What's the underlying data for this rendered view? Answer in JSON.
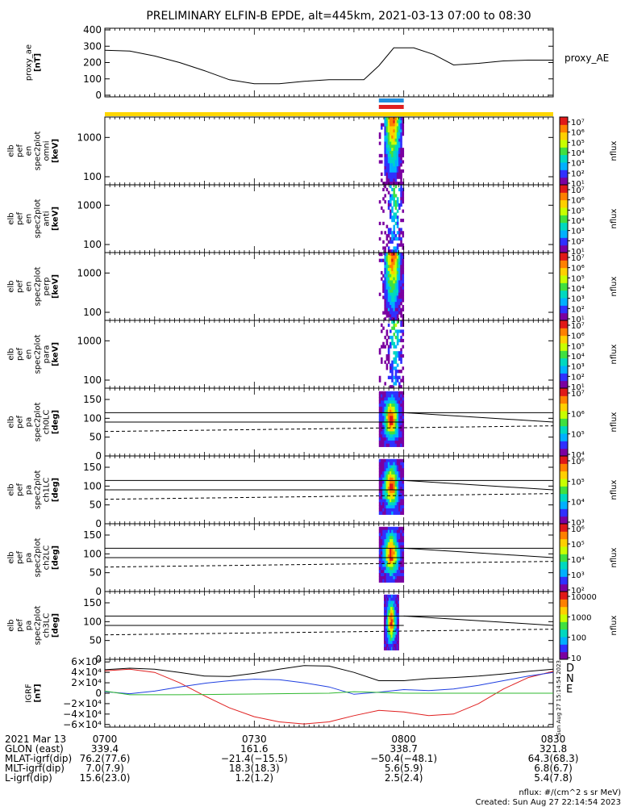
{
  "title": "PRELIMINARY ELFIN-B EPDE, alt=445km, 2021-03-13 07:00 to 08:30",
  "colors": {
    "axis": "#000000",
    "sci_zone": "#ffd700",
    "ibo": "#1f8fe0",
    "obo": "#e02020",
    "igrf_d": "#e02020",
    "igrf_n": "#1f3fe0",
    "igrf_e": "#2fb82f",
    "igrf_total": "#000000"
  },
  "colorscale": [
    "#7b00a0",
    "#3030ff",
    "#00b0ff",
    "#00d8c0",
    "#40e040",
    "#c8ff00",
    "#ffd000",
    "#ff8000",
    "#e01818"
  ],
  "chart_data": [
    {
      "panel": "proxy_ae",
      "type": "line",
      "ylabel": [
        "proxy_ae",
        "[nT]"
      ],
      "ylim": [
        0,
        400
      ],
      "yticks": [
        "400",
        "300",
        "200",
        "100",
        "0"
      ],
      "ytick_values": [
        400,
        300,
        200,
        100,
        0
      ],
      "legend": "proxy_AE",
      "x": [
        0,
        5,
        10,
        15,
        20,
        25,
        30,
        35,
        40,
        45,
        48,
        52,
        55,
        58,
        62,
        66,
        70,
        75,
        80,
        85,
        90
      ],
      "y": [
        275,
        270,
        240,
        200,
        150,
        95,
        70,
        70,
        85,
        95,
        95,
        95,
        180,
        290,
        290,
        250,
        185,
        195,
        210,
        215,
        215
      ]
    },
    {
      "panel": "science_zone_bars",
      "type": "bar",
      "sci_zone_span": [
        0,
        90
      ],
      "ibo_span": [
        55,
        60
      ],
      "obo_span": [
        55,
        60
      ]
    },
    {
      "panel": "en_spec_omni",
      "type": "heatmap",
      "ylabel": [
        "elb",
        "pef",
        "en",
        "spec2plot",
        "omni",
        "[keV]"
      ],
      "yticks": [
        "1000",
        "100"
      ],
      "ytick_values": [
        1000,
        100
      ],
      "colorbar_ticks": [
        "10⁷",
        "10⁶",
        "10⁵",
        "10⁴",
        "10³",
        "10²",
        "10¹"
      ],
      "colorbar_label": "nflux",
      "time_span": [
        55,
        60
      ]
    },
    {
      "panel": "en_spec_anti",
      "type": "heatmap",
      "ylabel": [
        "elb",
        "pef",
        "en",
        "spec2plot",
        "anti",
        "[keV]"
      ],
      "yticks": [
        "1000",
        "100"
      ],
      "ytick_values": [
        1000,
        100
      ],
      "colorbar_ticks": [
        "10⁷",
        "10⁶",
        "10⁵",
        "10⁴",
        "10³",
        "10²",
        "10¹"
      ],
      "colorbar_label": "nflux",
      "time_span": [
        55,
        60
      ]
    },
    {
      "panel": "en_spec_perp",
      "type": "heatmap",
      "ylabel": [
        "elb",
        "pef",
        "en",
        "spec2plot",
        "perp",
        "[keV]"
      ],
      "yticks": [
        "1000",
        "100"
      ],
      "ytick_values": [
        1000,
        100
      ],
      "colorbar_ticks": [
        "10⁷",
        "10⁶",
        "10⁵",
        "10⁴",
        "10³",
        "10²",
        "10¹"
      ],
      "colorbar_label": "nflux",
      "time_span": [
        55,
        60
      ]
    },
    {
      "panel": "en_spec_para",
      "type": "heatmap",
      "ylabel": [
        "elb",
        "pef",
        "en",
        "spec2plot",
        "para",
        "[keV]"
      ],
      "yticks": [
        "1000",
        "100"
      ],
      "ytick_values": [
        1000,
        100
      ],
      "colorbar_ticks": [
        "10⁷",
        "10⁶",
        "10⁵",
        "10⁴",
        "10³",
        "10²",
        "10¹"
      ],
      "colorbar_label": "nflux",
      "time_span": [
        55,
        60
      ]
    },
    {
      "panel": "pa_spec_ch0LC",
      "type": "heatmap",
      "ylabel": [
        "elb",
        "pef",
        "pa",
        "spec2plot",
        "ch0LC",
        "[deg]"
      ],
      "yticks": [
        "150",
        "100",
        "50",
        "0"
      ],
      "ytick_values": [
        150,
        100,
        50,
        0
      ],
      "ylim": [
        0,
        180
      ],
      "colorbar_ticks": [
        "10⁷",
        "10⁶",
        "10⁵",
        "10⁴"
      ],
      "colorbar_label": "nflux",
      "time_span": [
        55,
        60
      ]
    },
    {
      "panel": "pa_spec_ch1LC",
      "type": "heatmap",
      "ylabel": [
        "elb",
        "pef",
        "pa",
        "spec2plot",
        "ch1LC",
        "[deg]"
      ],
      "yticks": [
        "150",
        "100",
        "50",
        "0"
      ],
      "ytick_values": [
        150,
        100,
        50,
        0
      ],
      "ylim": [
        0,
        180
      ],
      "colorbar_ticks": [
        "10⁶",
        "10⁵",
        "10⁴",
        "10³"
      ],
      "colorbar_label": "nflux",
      "time_span": [
        55,
        60
      ]
    },
    {
      "panel": "pa_spec_ch2LC",
      "type": "heatmap",
      "ylabel": [
        "elb",
        "pef",
        "pa",
        "spec2plot",
        "ch2LC",
        "[deg]"
      ],
      "yticks": [
        "150",
        "100",
        "50",
        "0"
      ],
      "ytick_values": [
        150,
        100,
        50,
        0
      ],
      "ylim": [
        0,
        180
      ],
      "colorbar_ticks": [
        "10⁶",
        "10⁵",
        "10⁴",
        "10³",
        "10²"
      ],
      "colorbar_label": "nflux",
      "time_span": [
        55,
        60
      ]
    },
    {
      "panel": "pa_spec_ch3LC",
      "type": "heatmap",
      "ylabel": [
        "elb",
        "pef",
        "pa",
        "spec2plot",
        "ch3LC",
        "[deg]"
      ],
      "yticks": [
        "150",
        "100",
        "50",
        "0"
      ],
      "ytick_values": [
        150,
        100,
        50,
        0
      ],
      "ylim": [
        0,
        180
      ],
      "colorbar_ticks": [
        "10000",
        "1000",
        "100",
        "10"
      ],
      "colorbar_label": "nflux",
      "time_span": [
        56,
        59
      ]
    },
    {
      "panel": "igrf",
      "type": "line",
      "ylabel": [
        "IGRF",
        "[nT]"
      ],
      "yticks": [
        "6×10⁴",
        "4×10⁴",
        "2×10⁴",
        "0",
        "−2×10⁴",
        "−4×10⁴",
        "−6×10⁴"
      ],
      "ytick_values": [
        60000,
        40000,
        20000,
        0,
        -20000,
        -40000,
        -60000
      ],
      "ylim": [
        -65000,
        65000
      ],
      "legend": [
        "D",
        "N",
        "E"
      ],
      "x": [
        0,
        5,
        10,
        15,
        20,
        25,
        30,
        35,
        40,
        45,
        50,
        55,
        60,
        65,
        70,
        75,
        80,
        85,
        90
      ],
      "series": [
        {
          "name": "D",
          "values": [
            43000,
            46000,
            40000,
            20000,
            -5000,
            -28000,
            -45000,
            -55000,
            -59000,
            -55000,
            -43000,
            -33000,
            -36000,
            -43000,
            -40000,
            -20000,
            8000,
            30000,
            42000
          ]
        },
        {
          "name": "N",
          "values": [
            3000,
            -1000,
            4000,
            12000,
            19000,
            24000,
            27000,
            26000,
            20000,
            12000,
            -2000,
            2000,
            7000,
            5000,
            8000,
            15000,
            24000,
            33000,
            40000
          ]
        },
        {
          "name": "E",
          "values": [
            4000,
            -3000,
            -3000,
            -3000,
            -2500,
            -2000,
            -1500,
            -1000,
            -500,
            0,
            3000,
            1500,
            0,
            0,
            0,
            0,
            0,
            0,
            0
          ]
        },
        {
          "name": "",
          "values": [
            45000,
            48000,
            46000,
            40000,
            33000,
            32000,
            38000,
            46000,
            53000,
            52000,
            40000,
            24000,
            24000,
            28000,
            30000,
            33000,
            37000,
            42000,
            46000
          ]
        }
      ]
    }
  ],
  "xaxis": {
    "row_labels": [
      "2021 Mar 13",
      "GLON (east)",
      "MLAT-igrf(dip)",
      "MLT-igrf(dip)",
      "L-igrf(dip)"
    ],
    "ticks": [
      {
        "min": 0,
        "values": [
          "0700",
          "339.4",
          "76.2(77.6)",
          "7.0(7.9)",
          "15.6(23.0)"
        ]
      },
      {
        "min": 30,
        "values": [
          "0730",
          "161.6",
          "−21.4(−15.5)",
          "18.3(18.3)",
          "1.2(1.2)"
        ]
      },
      {
        "min": 60,
        "values": [
          "0800",
          "338.7",
          "−50.4(−48.1)",
          "5.6(5.9)",
          "2.5(2.4)"
        ]
      },
      {
        "min": 90,
        "values": [
          "0830",
          "321.8",
          "64.3(68.3)",
          "6.8(6.7)",
          "5.4(7.8)"
        ]
      }
    ]
  },
  "footer": {
    "units": "nflux: #/(cm^2 s sr MeV)",
    "created": "Created: Sun Aug 27 22:14:54 2023",
    "side_stamp": "Sun Aug 27 15:14:54 2023"
  }
}
